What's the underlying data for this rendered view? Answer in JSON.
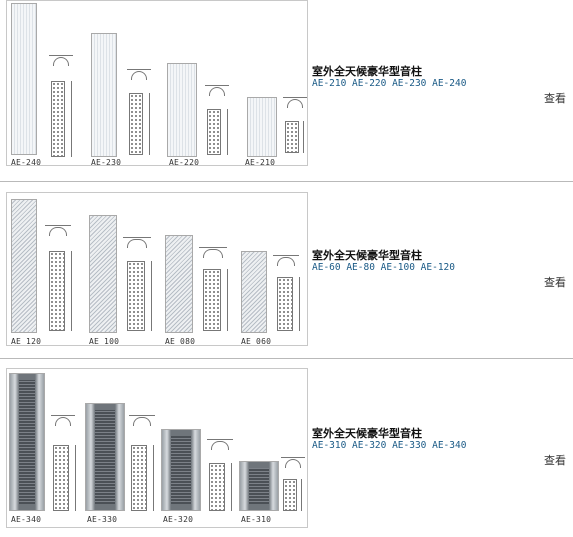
{
  "rows": [
    {
      "title": "室外全天候豪华型音柱",
      "models": "AE-210 AE-220 AE-230 AE-240",
      "view": "查看",
      "labels": [
        "AE-240",
        "AE-230",
        "AE-220",
        "AE-210"
      ]
    },
    {
      "title": "室外全天候豪华型音柱",
      "models": "AE-60 AE-80 AE-100 AE-120",
      "view": "查看",
      "labels": [
        "AE 120",
        "AE 100",
        "AE 080",
        "AE 060"
      ]
    },
    {
      "title": "室外全天候豪华型音柱",
      "models": "AE-310 AE-320 AE-330 AE-340",
      "view": "查看",
      "labels": [
        "AE-340",
        "AE-330",
        "AE-320",
        "AE-310"
      ]
    }
  ]
}
